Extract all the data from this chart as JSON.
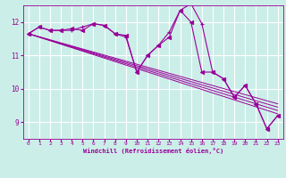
{
  "xlabel": "Windchill (Refroidissement éolien,°C)",
  "bg_color": "#cceee8",
  "line_color": "#990099",
  "grid_color": "#ffffff",
  "xlim": [
    -0.5,
    23.5
  ],
  "ylim": [
    8.5,
    12.5
  ],
  "yticks": [
    9,
    10,
    11,
    12
  ],
  "xticks": [
    0,
    1,
    2,
    3,
    4,
    5,
    6,
    7,
    8,
    9,
    10,
    11,
    12,
    13,
    14,
    15,
    16,
    17,
    18,
    19,
    20,
    21,
    22,
    23
  ],
  "hourly_x": [
    0,
    1,
    2,
    3,
    4,
    5,
    6,
    7,
    8,
    9,
    10,
    11,
    12,
    13,
    14,
    15,
    16,
    17,
    18,
    19,
    20,
    21,
    22,
    23
  ],
  "hourly_y": [
    11.65,
    11.85,
    11.75,
    11.75,
    11.75,
    11.85,
    11.95,
    11.9,
    11.65,
    11.55,
    10.5,
    11.0,
    11.3,
    11.7,
    12.35,
    12.55,
    11.95,
    10.5,
    10.3,
    9.75,
    10.1,
    9.55,
    8.8,
    9.2
  ],
  "smooth_x": [
    0,
    1,
    2,
    3,
    4,
    5,
    6,
    7,
    8,
    9,
    10,
    11,
    12,
    13,
    14,
    15,
    16,
    17,
    18,
    19,
    20,
    21,
    22,
    23
  ],
  "smooth_y": [
    11.65,
    11.85,
    11.75,
    11.75,
    11.8,
    11.75,
    11.95,
    11.9,
    11.65,
    11.6,
    10.5,
    11.0,
    11.3,
    11.55,
    12.35,
    12.0,
    10.5,
    10.5,
    10.3,
    9.75,
    10.1,
    9.55,
    8.8,
    9.2
  ],
  "reg_lines": [
    {
      "x": [
        0,
        23
      ],
      "y": [
        11.65,
        9.55
      ]
    },
    {
      "x": [
        0,
        23
      ],
      "y": [
        11.65,
        9.45
      ]
    },
    {
      "x": [
        0,
        23
      ],
      "y": [
        11.65,
        9.35
      ]
    },
    {
      "x": [
        0,
        23
      ],
      "y": [
        11.65,
        9.25
      ]
    }
  ]
}
